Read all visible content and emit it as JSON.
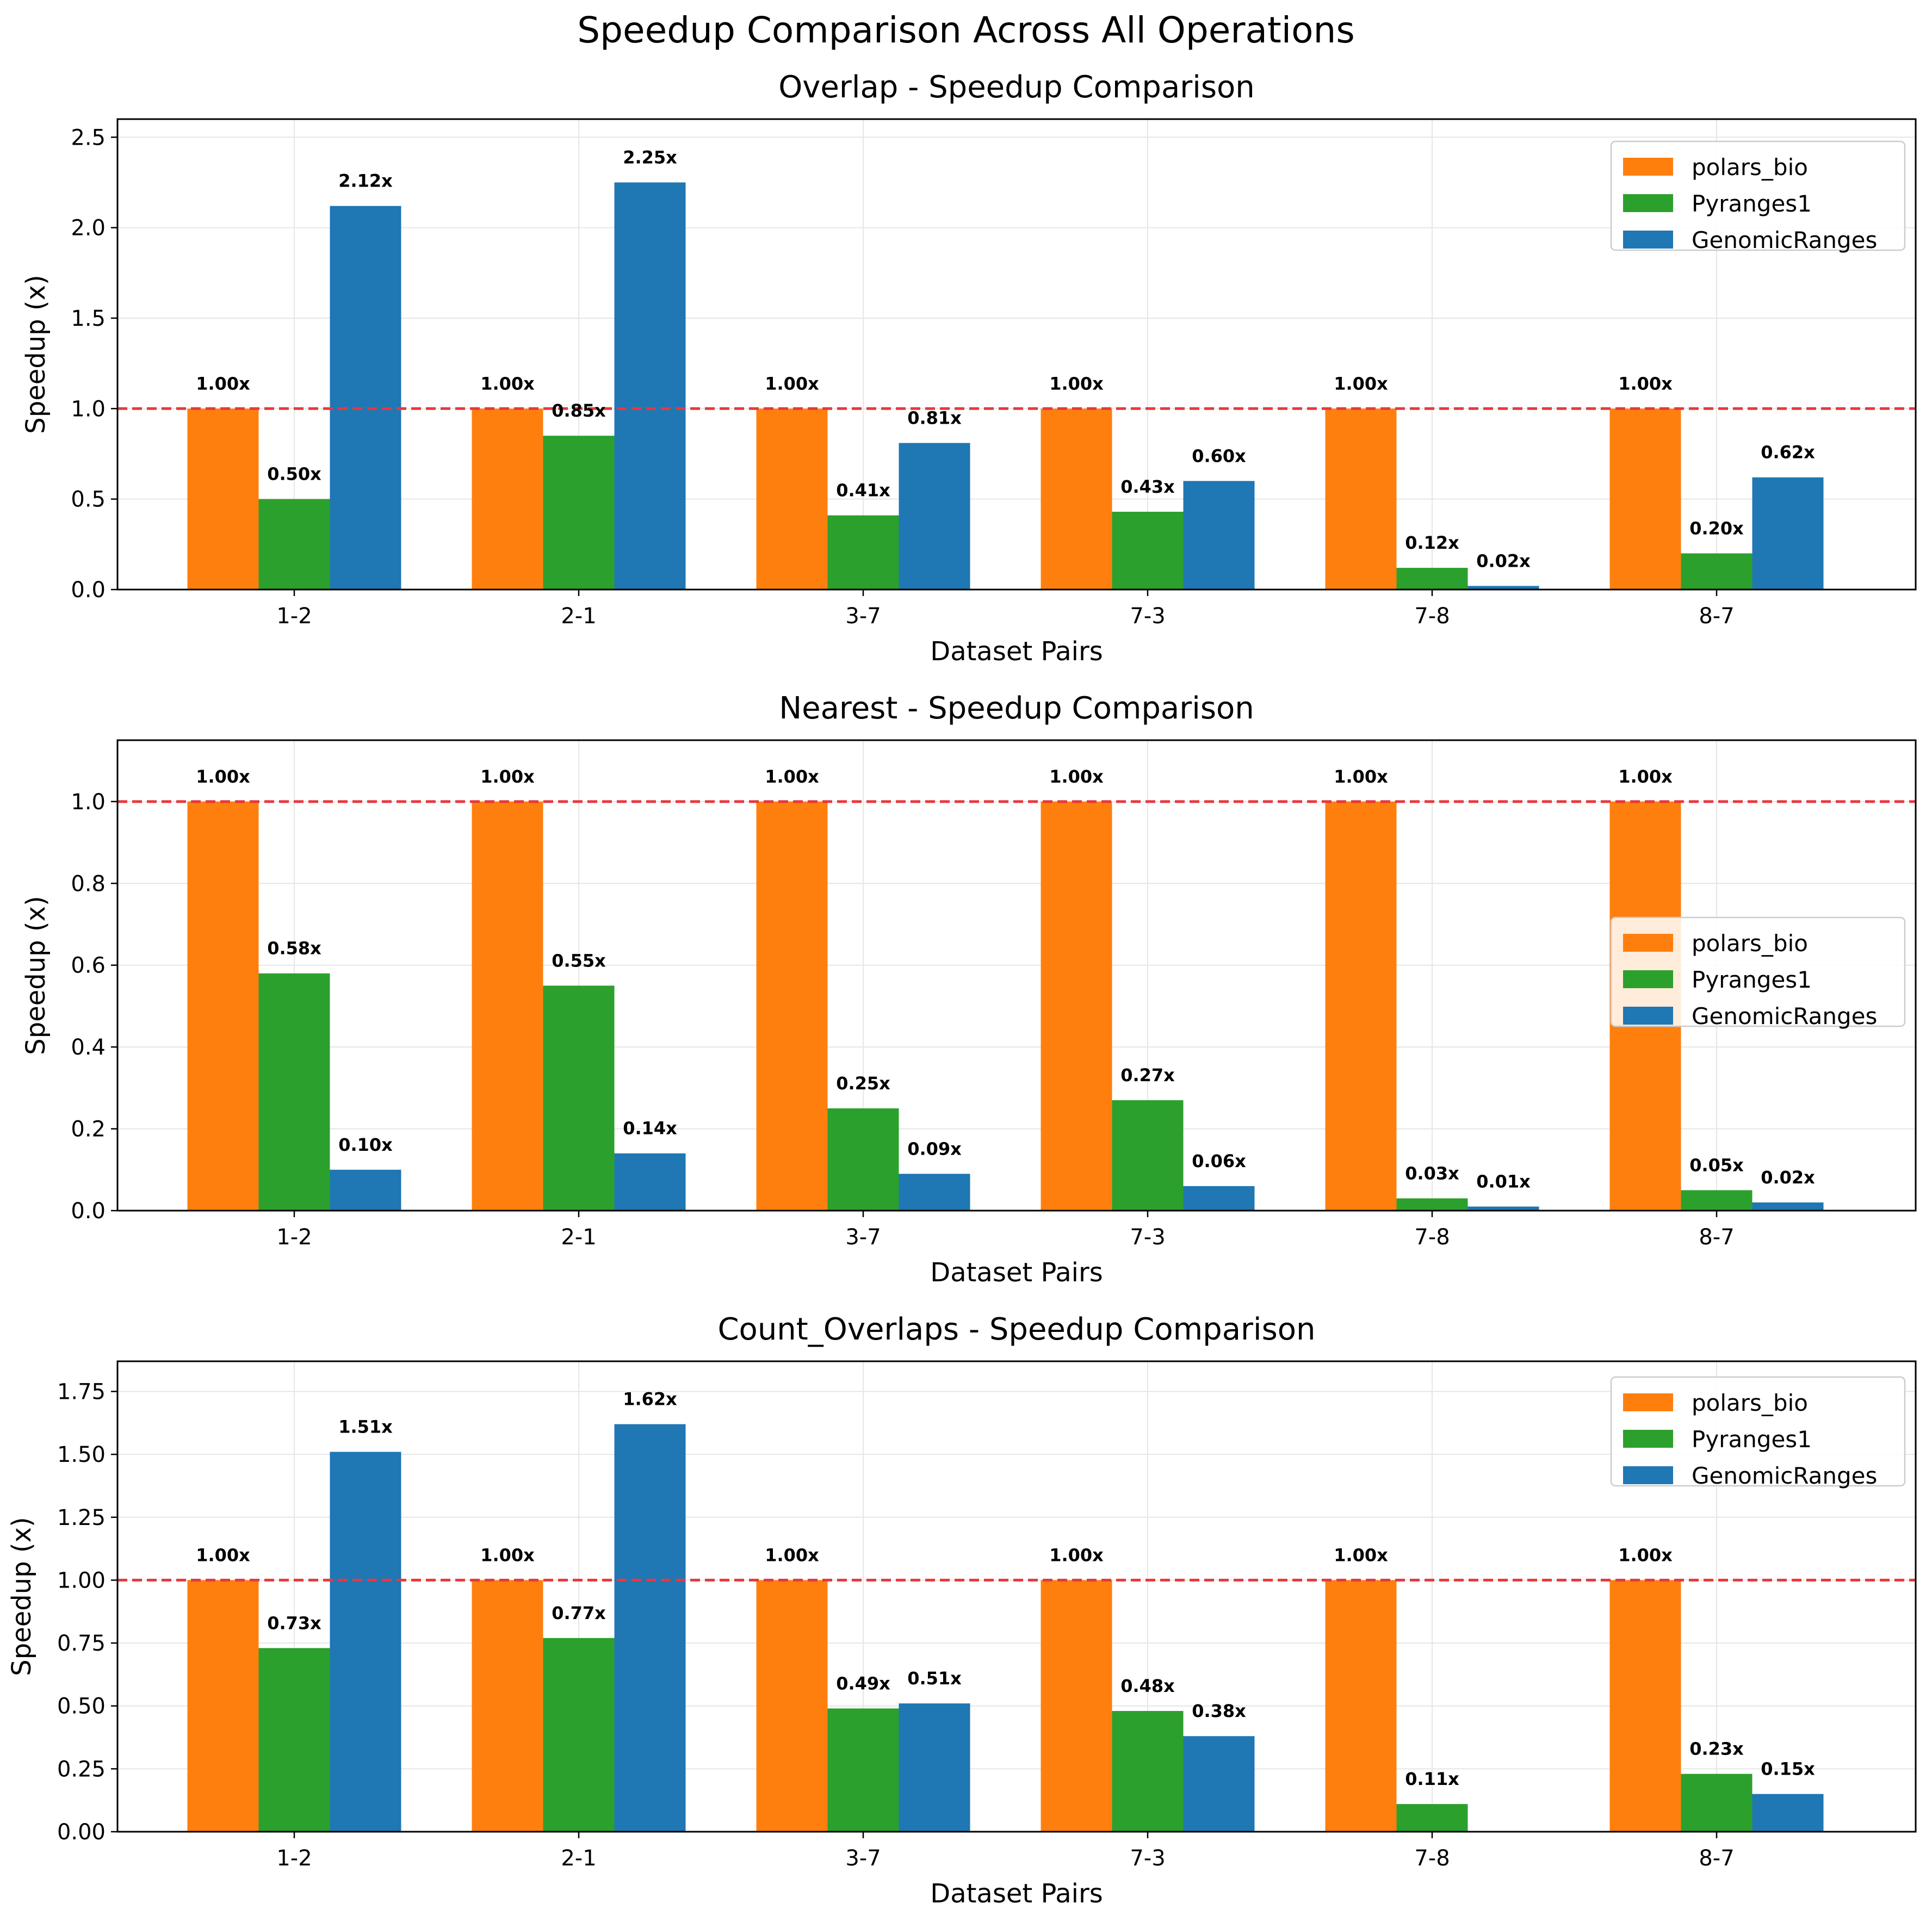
{
  "figure_title": "Speedup Comparison Across All Operations",
  "colors": {
    "polars_bio": "#ff7f0e",
    "Pyranges1": "#2ca02c",
    "GenomicRanges": "#1f77b4",
    "reference_line": "#e8383d"
  },
  "chart_data": [
    {
      "type": "bar",
      "title": "Overlap - Speedup Comparison",
      "xlabel": "Dataset Pairs",
      "ylabel": "Speedup (x)",
      "categories": [
        "1-2",
        "2-1",
        "3-7",
        "7-3",
        "7-8",
        "8-7"
      ],
      "ylim": [
        0,
        2.6
      ],
      "yticks": [
        0.0,
        0.5,
        1.0,
        1.5,
        2.0,
        2.5
      ],
      "ytick_labels": [
        "0.0",
        "0.5",
        "1.0",
        "1.5",
        "2.0",
        "2.5"
      ],
      "reference_line": 1.0,
      "grid": true,
      "legend_position": "upper right",
      "series": [
        {
          "name": "polars_bio",
          "values": [
            1.0,
            1.0,
            1.0,
            1.0,
            1.0,
            1.0
          ],
          "labels": [
            "1.00x",
            "1.00x",
            "1.00x",
            "1.00x",
            "1.00x",
            "1.00x"
          ]
        },
        {
          "name": "Pyranges1",
          "values": [
            0.5,
            0.85,
            0.41,
            0.43,
            0.12,
            0.2
          ],
          "labels": [
            "0.50x",
            "0.85x",
            "0.41x",
            "0.43x",
            "0.12x",
            "0.20x"
          ]
        },
        {
          "name": "GenomicRanges",
          "values": [
            2.12,
            2.25,
            0.81,
            0.6,
            0.02,
            0.62
          ],
          "labels": [
            "2.12x",
            "2.25x",
            "0.81x",
            "0.60x",
            "0.02x",
            "0.62x"
          ]
        }
      ]
    },
    {
      "type": "bar",
      "title": "Nearest - Speedup Comparison",
      "xlabel": "Dataset Pairs",
      "ylabel": "Speedup (x)",
      "categories": [
        "1-2",
        "2-1",
        "3-7",
        "7-3",
        "7-8",
        "8-7"
      ],
      "ylim": [
        0,
        1.15
      ],
      "yticks": [
        0.0,
        0.2,
        0.4,
        0.6,
        0.8,
        1.0
      ],
      "ytick_labels": [
        "0.0",
        "0.2",
        "0.4",
        "0.6",
        "0.8",
        "1.0"
      ],
      "reference_line": 1.0,
      "grid": true,
      "legend_position": "center right",
      "series": [
        {
          "name": "polars_bio",
          "values": [
            1.0,
            1.0,
            1.0,
            1.0,
            1.0,
            1.0
          ],
          "labels": [
            "1.00x",
            "1.00x",
            "1.00x",
            "1.00x",
            "1.00x",
            "1.00x"
          ]
        },
        {
          "name": "Pyranges1",
          "values": [
            0.58,
            0.55,
            0.25,
            0.27,
            0.03,
            0.05
          ],
          "labels": [
            "0.58x",
            "0.55x",
            "0.25x",
            "0.27x",
            "0.03x",
            "0.05x"
          ]
        },
        {
          "name": "GenomicRanges",
          "values": [
            0.1,
            0.14,
            0.09,
            0.06,
            0.01,
            0.02
          ],
          "labels": [
            "0.10x",
            "0.14x",
            "0.09x",
            "0.06x",
            "0.01x",
            "0.02x"
          ]
        }
      ]
    },
    {
      "type": "bar",
      "title": "Count_Overlaps - Speedup Comparison",
      "xlabel": "Dataset Pairs",
      "ylabel": "Speedup (x)",
      "categories": [
        "1-2",
        "2-1",
        "3-7",
        "7-3",
        "7-8",
        "8-7"
      ],
      "ylim": [
        0,
        1.87
      ],
      "yticks": [
        0.0,
        0.25,
        0.5,
        0.75,
        1.0,
        1.25,
        1.5,
        1.75
      ],
      "ytick_labels": [
        "0.00",
        "0.25",
        "0.50",
        "0.75",
        "1.00",
        "1.25",
        "1.50",
        "1.75"
      ],
      "reference_line": 1.0,
      "grid": true,
      "legend_position": "upper right",
      "series": [
        {
          "name": "polars_bio",
          "values": [
            1.0,
            1.0,
            1.0,
            1.0,
            1.0,
            1.0
          ],
          "labels": [
            "1.00x",
            "1.00x",
            "1.00x",
            "1.00x",
            "1.00x",
            "1.00x"
          ]
        },
        {
          "name": "Pyranges1",
          "values": [
            0.73,
            0.77,
            0.49,
            0.48,
            0.11,
            0.23
          ],
          "labels": [
            "0.73x",
            "0.77x",
            "0.49x",
            "0.48x",
            "0.11x",
            "0.23x"
          ]
        },
        {
          "name": "GenomicRanges",
          "values": [
            1.51,
            1.62,
            0.51,
            0.38,
            null,
            0.15
          ],
          "labels": [
            "1.51x",
            "1.62x",
            "0.51x",
            "0.38x",
            null,
            "0.15x"
          ]
        }
      ]
    }
  ]
}
